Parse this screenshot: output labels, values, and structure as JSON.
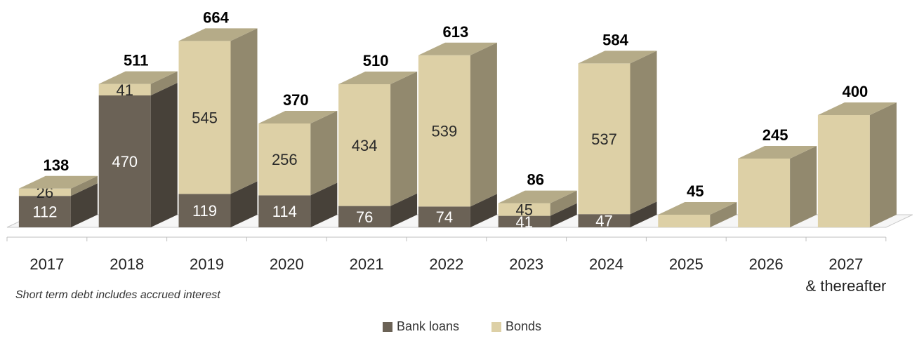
{
  "chart_data": {
    "type": "bar",
    "stacked": true,
    "style": "3d",
    "categories": [
      "2017",
      "2018",
      "2019",
      "2020",
      "2021",
      "2022",
      "2023",
      "2024",
      "2025",
      "2026",
      "2027\n& thereafter"
    ],
    "series": [
      {
        "name": "Bank loans",
        "color": "#6b6256",
        "values": [
          112,
          470,
          119,
          114,
          76,
          74,
          41,
          47,
          0,
          0,
          0
        ],
        "labels": [
          "112",
          "470",
          "119",
          "114",
          "76",
          "74",
          "41",
          "47",
          "",
          "",
          ""
        ]
      },
      {
        "name": "Bonds",
        "color": "#ddd0a6",
        "values": [
          26,
          41,
          545,
          256,
          434,
          539,
          45,
          537,
          45,
          245,
          400
        ],
        "labels": [
          "26",
          "41",
          "545",
          "256",
          "434",
          "539",
          "45",
          "537",
          "",
          "",
          ""
        ]
      }
    ],
    "totals": [
      "138",
      "511",
      "664",
      "370",
      "510",
      "613",
      "86",
      "584",
      "45",
      "245",
      "400"
    ],
    "ylim": [
      0,
      700
    ],
    "grid": false
  },
  "note": "Short term debt includes accrued interest",
  "legend": {
    "bank_loans": "Bank loans",
    "bonds": "Bonds"
  }
}
